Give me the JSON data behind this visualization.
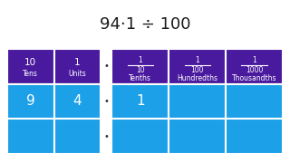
{
  "title": "94·1 ÷ 100",
  "bg_color": "#ffffff",
  "header_color": "#4a1a9e",
  "cell_color": "#1ca0e8",
  "header_text_color": "#ffffff",
  "cell_text_color": "#ffffff",
  "title_color": "#1a1a1a",
  "col_labels_top": [
    "10",
    "1",
    "1",
    "1",
    "1"
  ],
  "col_labels_mid": [
    "",
    "",
    "10",
    "100",
    "1000"
  ],
  "col_labels_bot": [
    "Tens",
    "Units",
    "Tenths",
    "Hundredths",
    "Thousandths"
  ],
  "data_rows": [
    [
      "9",
      "4",
      "1",
      "",
      ""
    ],
    [
      "",
      "",
      "",
      "",
      ""
    ]
  ],
  "title_fontsize": 13,
  "header_fontsize_large": 7.5,
  "header_fontsize_small": 5.5,
  "cell_fontsize": 11,
  "dot_fontsize": 7
}
